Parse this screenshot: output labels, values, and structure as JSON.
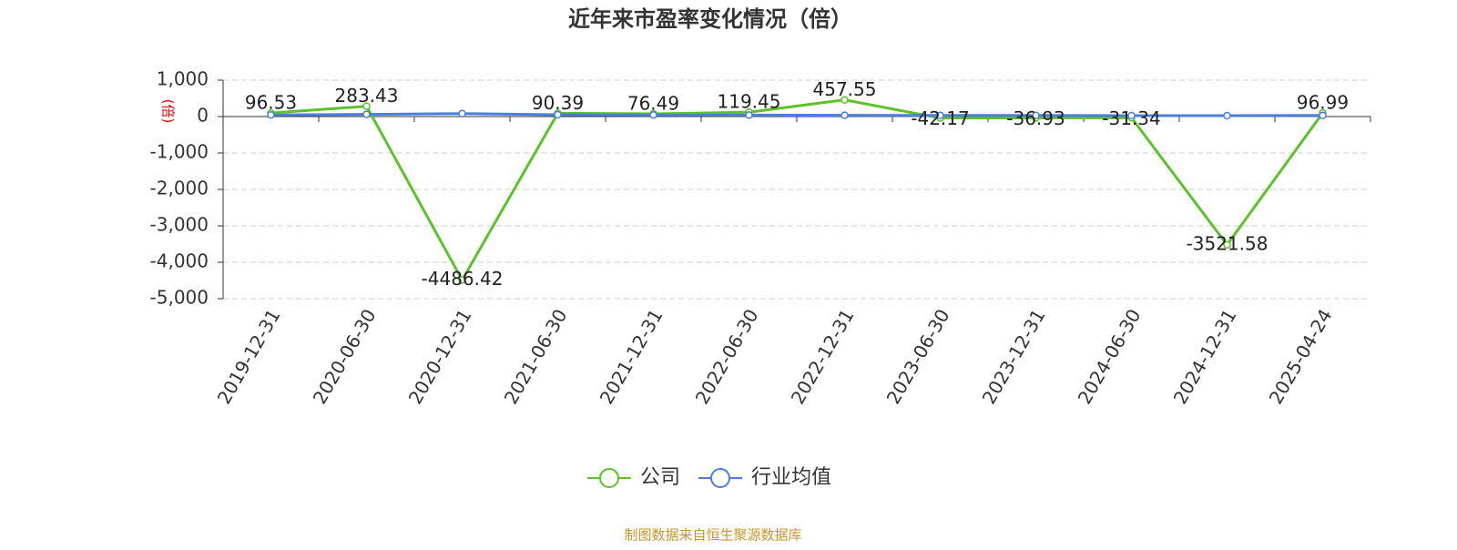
{
  "chart_data": {
    "type": "line",
    "title": "近年来市盈率变化情况（倍）",
    "y_label": "(倍)",
    "source": "制图数据来自恒生聚源数据库",
    "categories": [
      "2019-12-31",
      "2020-06-30",
      "2020-12-31",
      "2021-06-30",
      "2021-12-31",
      "2022-06-30",
      "2022-12-31",
      "2023-06-30",
      "2023-12-31",
      "2024-06-30",
      "2024-12-31",
      "2025-04-24"
    ],
    "series": [
      {
        "name": "公司",
        "color": "#5cc22c",
        "values": [
          96.53,
          283.43,
          -4486.42,
          90.39,
          76.49,
          119.45,
          457.55,
          -42.17,
          -36.93,
          -31.34,
          -3521.58,
          96.99
        ]
      },
      {
        "name": "行业均值",
        "color": "#4a7fdc",
        "values": [
          45,
          60,
          80,
          50,
          45,
          40,
          35,
          30,
          30,
          25,
          25,
          30
        ]
      }
    ],
    "ylim": [
      -5000,
      1000
    ],
    "yticks": [
      {
        "value": 1000,
        "label": "1,000"
      },
      0,
      {
        "value": -1000,
        "label": "-1,000"
      },
      {
        "value": -2000,
        "label": "-2,000"
      },
      {
        "value": -3000,
        "label": "-3,000"
      },
      {
        "value": -4000,
        "label": "-4,000"
      },
      {
        "value": -5000,
        "label": "-5,000"
      }
    ],
    "grid": true
  }
}
